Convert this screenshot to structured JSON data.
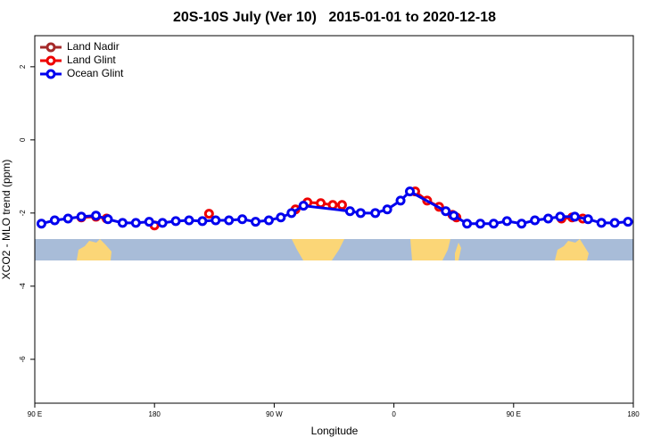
{
  "chart_data": {
    "type": "line",
    "title": "20S-10S July (Ver 10)   2015-01-01 to 2020-12-18",
    "x_label": "Longitude",
    "y_label": "XCO2 - MLO trend (ppm)",
    "xlim": [
      90,
      540
    ],
    "xticks": [
      {
        "value": 90,
        "label": "90 E"
      },
      180,
      {
        "value": 270,
        "label": "90 W"
      },
      {
        "value": 360,
        "label": "0"
      },
      {
        "value": 450,
        "label": "90 E"
      },
      {
        "value": 540,
        "label": "180"
      }
    ],
    "ylim": [
      -7.2,
      2.85
    ],
    "yticks": [
      -6,
      -4,
      -2,
      0,
      2
    ],
    "legend": "top-left",
    "series": [
      {
        "name": "Land Nadir",
        "color": "#a52a2a",
        "x": [],
        "values": []
      },
      {
        "name": "Land Glint",
        "color": "#ee0000",
        "x": [
          125,
          136,
          144,
          null,
          180,
          null,
          221,
          null,
          286,
          295,
          305,
          314,
          321,
          null,
          376,
          385,
          394,
          404,
          407,
          null,
          486,
          494,
          502
        ],
        "values": [
          -2.12,
          -2.1,
          -2.15,
          null,
          -2.34,
          null,
          -2.02,
          null,
          -1.9,
          -1.71,
          -1.73,
          -1.78,
          -1.78,
          null,
          -1.41,
          -1.66,
          -1.83,
          -2.05,
          -2.12,
          null,
          -2.15,
          -2.12,
          -2.15
        ]
      },
      {
        "name": "Ocean Glint",
        "color": "#0000ee",
        "x": [
          95,
          105,
          115,
          125,
          136,
          145,
          156,
          166,
          176,
          186,
          196,
          206,
          216,
          226,
          236,
          246,
          256,
          266,
          275,
          283,
          292,
          327,
          335,
          346,
          355,
          365,
          372,
          399,
          405,
          415,
          425,
          435,
          445,
          456,
          466,
          476,
          485,
          496,
          506,
          516,
          526,
          536
        ],
        "values": [
          -2.29,
          -2.2,
          -2.15,
          -2.1,
          -2.07,
          -2.17,
          -2.27,
          -2.27,
          -2.24,
          -2.27,
          -2.22,
          -2.2,
          -2.22,
          -2.2,
          -2.2,
          -2.17,
          -2.24,
          -2.2,
          -2.12,
          -2.0,
          -1.8,
          -1.95,
          -2.0,
          -2.0,
          -1.9,
          -1.66,
          -1.41,
          -1.95,
          -2.07,
          -2.29,
          -2.29,
          -2.29,
          -2.22,
          -2.29,
          -2.2,
          -2.15,
          -2.1,
          -2.1,
          -2.17,
          -2.27,
          -2.27,
          -2.24
        ]
      }
    ]
  }
}
